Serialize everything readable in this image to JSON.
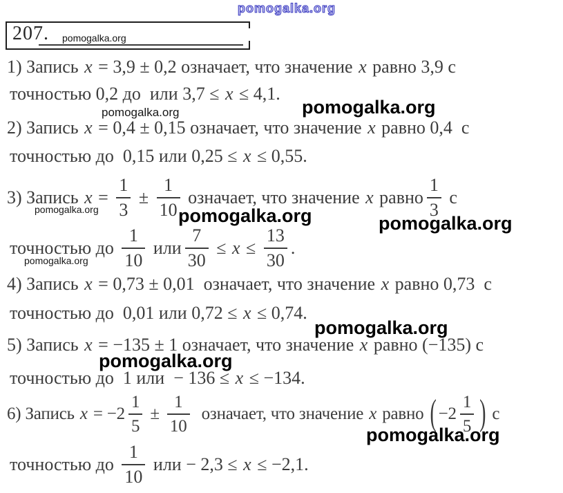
{
  "watermarks": {
    "brand": "pomogalka.org",
    "top_color": "#3b3bc0"
  },
  "header": {
    "problem_number": "207."
  },
  "items": [
    {
      "line1": [
        {
          "s": "1) Запись "
        },
        {
          "v": "x"
        },
        {
          "s": " = 3,9 ± 0,2 означает, что значение "
        },
        {
          "v": "x"
        },
        {
          "s": " равно 3,9 с"
        }
      ],
      "line2": [
        {
          "s": "точностью 0,2 до  или 3,7 ≤ "
        },
        {
          "v": "x"
        },
        {
          "s": " ≤ 4,1."
        }
      ]
    },
    {
      "line1": [
        {
          "s": "2) Запись "
        },
        {
          "v": "x"
        },
        {
          "s": " = 0,4 ± 0,15 означает, что значение "
        },
        {
          "v": "x"
        },
        {
          "s": " равно 0,4  с"
        }
      ],
      "line2": [
        {
          "s": "точностью до  0,15 или 0,25 ≤ "
        },
        {
          "v": "x"
        },
        {
          "s": " ≤ 0,55."
        }
      ]
    },
    {
      "line1": [
        {
          "s": "3) Запись "
        },
        {
          "v": "x"
        },
        {
          "s": " = "
        },
        {
          "f": [
            "1",
            "3"
          ]
        },
        {
          "s": " ± "
        },
        {
          "f": [
            "1",
            "10"
          ]
        },
        {
          "s": " означает, что значение "
        },
        {
          "v": "x"
        },
        {
          "s": " равно"
        },
        {
          "f": [
            "1",
            "3"
          ]
        },
        {
          "s": " с"
        }
      ],
      "line2": [
        {
          "s": "точностью до "
        },
        {
          "f": [
            "1",
            "10"
          ]
        },
        {
          "s": " или"
        },
        {
          "f": [
            "7",
            "30"
          ]
        },
        {
          "s": " ≤ "
        },
        {
          "v": "x"
        },
        {
          "s": " ≤ "
        },
        {
          "f": [
            "13",
            "30"
          ]
        },
        {
          "s": "."
        }
      ]
    },
    {
      "line1": [
        {
          "s": "4) Запись "
        },
        {
          "v": "x"
        },
        {
          "s": " = 0,73 ± 0,01  означает, что значение "
        },
        {
          "v": "x"
        },
        {
          "s": " равно 0,73  с"
        }
      ],
      "line2": [
        {
          "s": "точностью до  0,01 или 0,72 ≤ "
        },
        {
          "v": "x"
        },
        {
          "s": " ≤ 0,74."
        }
      ]
    },
    {
      "line1": [
        {
          "s": "5) Запись "
        },
        {
          "v": "x"
        },
        {
          "s": " = −135 ± 1 означает, что значение "
        },
        {
          "v": "x"
        },
        {
          "s": " равно (−135) с"
        }
      ],
      "line2": [
        {
          "s": "точностью до  1 или  − 136 ≤ "
        },
        {
          "v": "x"
        },
        {
          "s": " ≤ −134."
        }
      ]
    },
    {
      "line1": [
        {
          "s": "6) Запись "
        },
        {
          "v": "x"
        },
        {
          "s": " = −2"
        },
        {
          "f": [
            "1",
            "5"
          ]
        },
        {
          "s": " ± "
        },
        {
          "f": [
            "1",
            "10"
          ]
        },
        {
          "s": "  означает, что значение "
        },
        {
          "v": "x"
        },
        {
          "s": " равно "
        },
        {
          "p": "("
        },
        {
          "s": "−2"
        },
        {
          "f": [
            "1",
            "5"
          ]
        },
        {
          "p": ")"
        },
        {
          "s": " с"
        }
      ],
      "line2": [
        {
          "s": "точностью до "
        },
        {
          "f": [
            "1",
            "10"
          ]
        },
        {
          "s": " или − 2,3 ≤ "
        },
        {
          "v": "x"
        },
        {
          "s": " ≤ −2,1."
        }
      ]
    }
  ]
}
